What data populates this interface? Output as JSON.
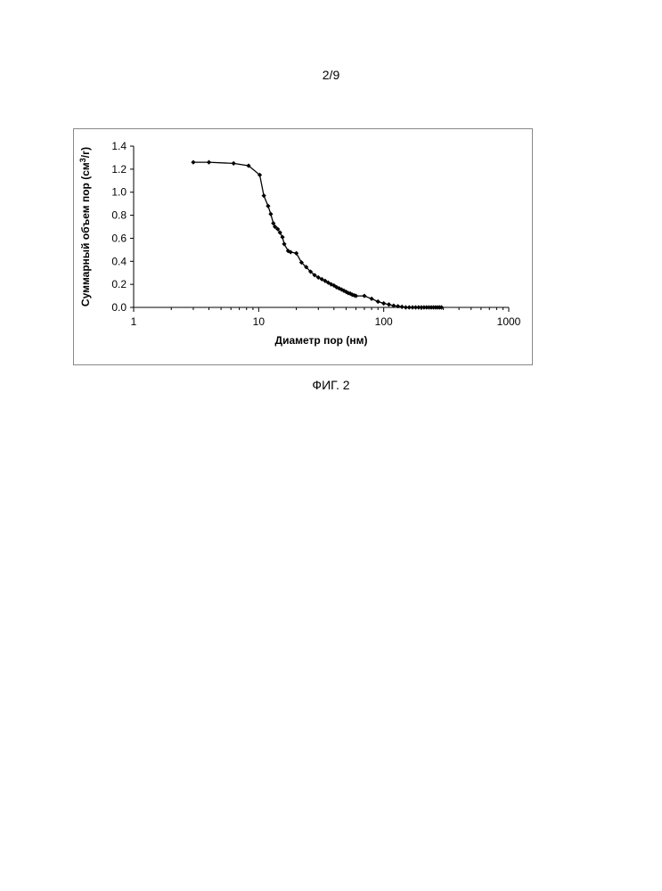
{
  "page": {
    "number": "2/9",
    "caption": "ФИГ. 2"
  },
  "chart_data": {
    "type": "line",
    "title": "",
    "xlabel": "Диаметр пор (нм)",
    "ylabel": {
      "before": "Суммарный объем пор (см",
      "sup": "3",
      "after": "/г)"
    },
    "xscale": "log",
    "xlim": [
      1,
      1000
    ],
    "ylim": [
      0,
      1.4
    ],
    "xticks": [
      1,
      10,
      100,
      1000
    ],
    "xtick_labels": [
      "1",
      "10",
      "100",
      "1000"
    ],
    "yticks": [
      0,
      0.2,
      0.4,
      0.6,
      0.8,
      1.0,
      1.2,
      1.4
    ],
    "ytick_labels": [
      "0.0",
      "0.2",
      "0.4",
      "0.6",
      "0.8",
      "1.0",
      "1.2",
      "1.4"
    ],
    "grid": false,
    "legend": "none",
    "marker": "diamond",
    "line_color": "#000000",
    "series": [
      {
        "x": [
          3.0,
          4.0,
          6.3,
          8.3,
          10.2,
          11.0,
          11.9,
          12.5,
          13.1,
          13.5,
          14.2,
          14.8,
          15.5,
          16.0,
          17.2,
          18.0,
          20.0,
          22.0,
          24.0,
          26.0,
          28.0,
          30.0,
          32.0,
          34.0,
          36.0,
          38.0,
          40.0,
          42.0,
          44.0,
          46.0,
          48.0,
          50.0,
          52.0,
          54.0,
          56.0,
          58.0,
          60.0,
          70.0,
          80.0,
          90.0,
          100.0,
          110.0,
          120.0,
          130.0,
          140.0,
          150.0,
          160.0,
          170.0,
          180.0,
          190.0,
          200.0,
          210.0,
          220.0,
          230.0,
          240.0,
          250.0,
          260.0,
          270.0,
          280.0,
          290.0
        ],
        "y": [
          1.26,
          1.26,
          1.25,
          1.23,
          1.15,
          0.97,
          0.88,
          0.81,
          0.73,
          0.7,
          0.68,
          0.65,
          0.61,
          0.55,
          0.49,
          0.48,
          0.47,
          0.39,
          0.35,
          0.31,
          0.28,
          0.26,
          0.245,
          0.23,
          0.215,
          0.2,
          0.19,
          0.175,
          0.165,
          0.155,
          0.145,
          0.135,
          0.125,
          0.12,
          0.11,
          0.105,
          0.1,
          0.1,
          0.075,
          0.05,
          0.035,
          0.025,
          0.015,
          0.01,
          0.005,
          0.0,
          0.0,
          0.0,
          0.0,
          0.0,
          0.0,
          0.0,
          0.0,
          0.0,
          0.0,
          0.0,
          0.0,
          0.0,
          0.0,
          0.0
        ]
      }
    ]
  }
}
